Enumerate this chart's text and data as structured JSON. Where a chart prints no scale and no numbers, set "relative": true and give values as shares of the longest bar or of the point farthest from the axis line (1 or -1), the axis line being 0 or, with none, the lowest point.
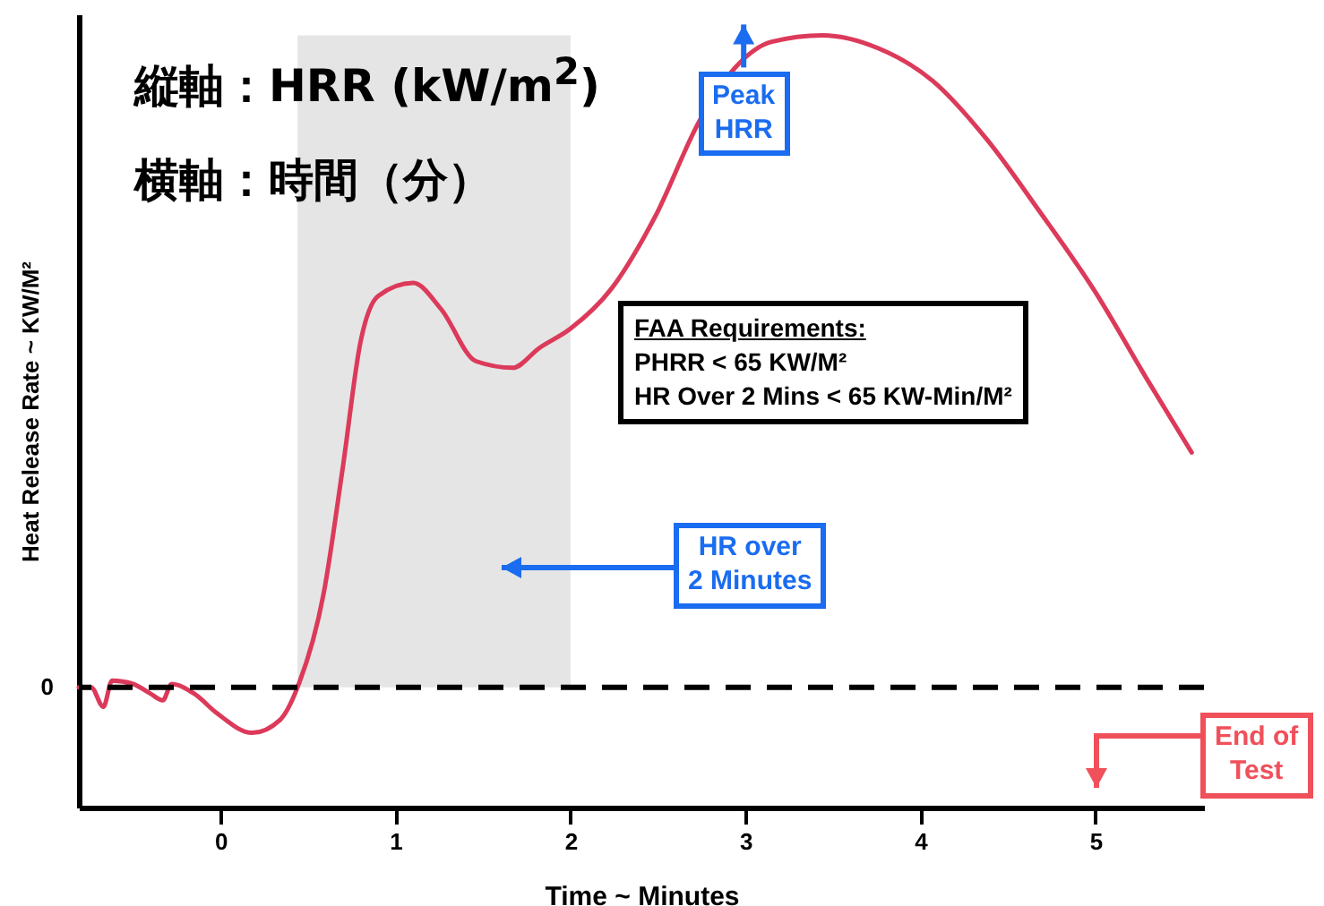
{
  "chart_data": {
    "type": "line",
    "relative": true,
    "xlabel": "Time ~ Minutes",
    "ylabel": "Heat Release Rate ~ KW/M²",
    "xlim": [
      -0.81,
      5.62
    ],
    "xticks": [
      0,
      1,
      2,
      3,
      4,
      5
    ],
    "grid": false,
    "marker": "none",
    "line_style": "solid",
    "series": [
      {
        "color": "#dc3a5a",
        "x": [
          -0.81,
          -0.74,
          -0.67,
          -0.62,
          -0.5,
          -0.4,
          -0.33,
          -0.28,
          -0.15,
          -0.02,
          0.18,
          0.34,
          0.44,
          0.59,
          0.7,
          0.8,
          0.9,
          1.1,
          1.26,
          1.46,
          1.67,
          1.82,
          2,
          2.23,
          2.48,
          2.74,
          2.94,
          3.15,
          3.44,
          3.76,
          4.07,
          4.38,
          4.68,
          4.99,
          5.3,
          5.55
        ],
        "values": [
          0,
          0,
          -0.03,
          0.01,
          0.005,
          -0.01,
          -0.02,
          0.005,
          -0.01,
          -0.04,
          -0.07,
          -0.05,
          0,
          0.145,
          0.34,
          0.53,
          0.6,
          0.62,
          0.58,
          0.5,
          0.49,
          0.52,
          0.55,
          0.61,
          0.72,
          0.87,
          0.95,
          0.99,
          1,
          0.98,
          0.93,
          0.84,
          0.73,
          0.61,
          0.47,
          0.36
        ]
      }
    ],
    "ref_lines": [
      {
        "axis": "y",
        "value": 0,
        "label": "0",
        "line_style": "dashed",
        "color": "#000000"
      }
    ],
    "bands": [
      {
        "axis": "x",
        "from": 0.44,
        "to": 2,
        "color": "#d0d0d0"
      }
    ],
    "annotations": [
      "縦軸：HRR (kW/m$^{2}$)",
      "横軸：時間（分）",
      {
        "text": "Peak\nHRR",
        "x": 3.44,
        "y": 1
      },
      "FAA Requirements:\nPHRR < 65 KW/M²\nHR Over 2 Mins < 65 KW-Min/M²",
      "HR over\n2 Minutes",
      "End of\nTest"
    ]
  }
}
